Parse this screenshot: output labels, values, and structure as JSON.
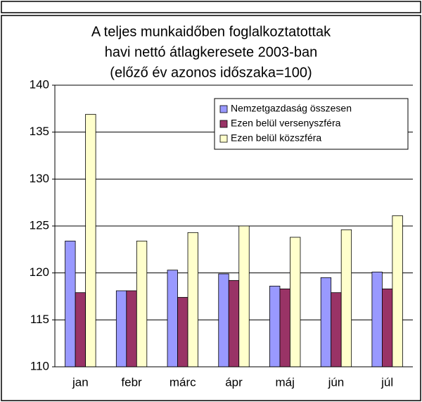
{
  "chart_data": {
    "type": "bar",
    "title": [
      "A teljes munkaidőben foglalkoztatottak",
      "havi nettó átlagkeresete 2003-ban",
      "(előző év azonos időszaka=100)"
    ],
    "categories": [
      "jan",
      "febr",
      "márc",
      "ápr",
      "máj",
      "jún",
      "júl"
    ],
    "series": [
      {
        "name": "Nemzetgazdaság összesen",
        "color": "#9999ff",
        "values": [
          123.4,
          118.1,
          120.3,
          119.9,
          118.6,
          119.5,
          120.1
        ]
      },
      {
        "name": "Ezen belül versenyszféra",
        "color": "#993366",
        "values": [
          117.9,
          118.1,
          117.4,
          119.2,
          118.3,
          117.9,
          118.3
        ]
      },
      {
        "name": "Ezen belül közszféra",
        "color": "#ffffcc",
        "values": [
          136.9,
          123.4,
          124.3,
          125.0,
          123.8,
          124.6,
          126.1
        ]
      }
    ],
    "ylim": [
      110,
      140
    ],
    "yticks": [
      110,
      115,
      120,
      125,
      130,
      135,
      140
    ],
    "grid": true,
    "legend": "top-right"
  }
}
